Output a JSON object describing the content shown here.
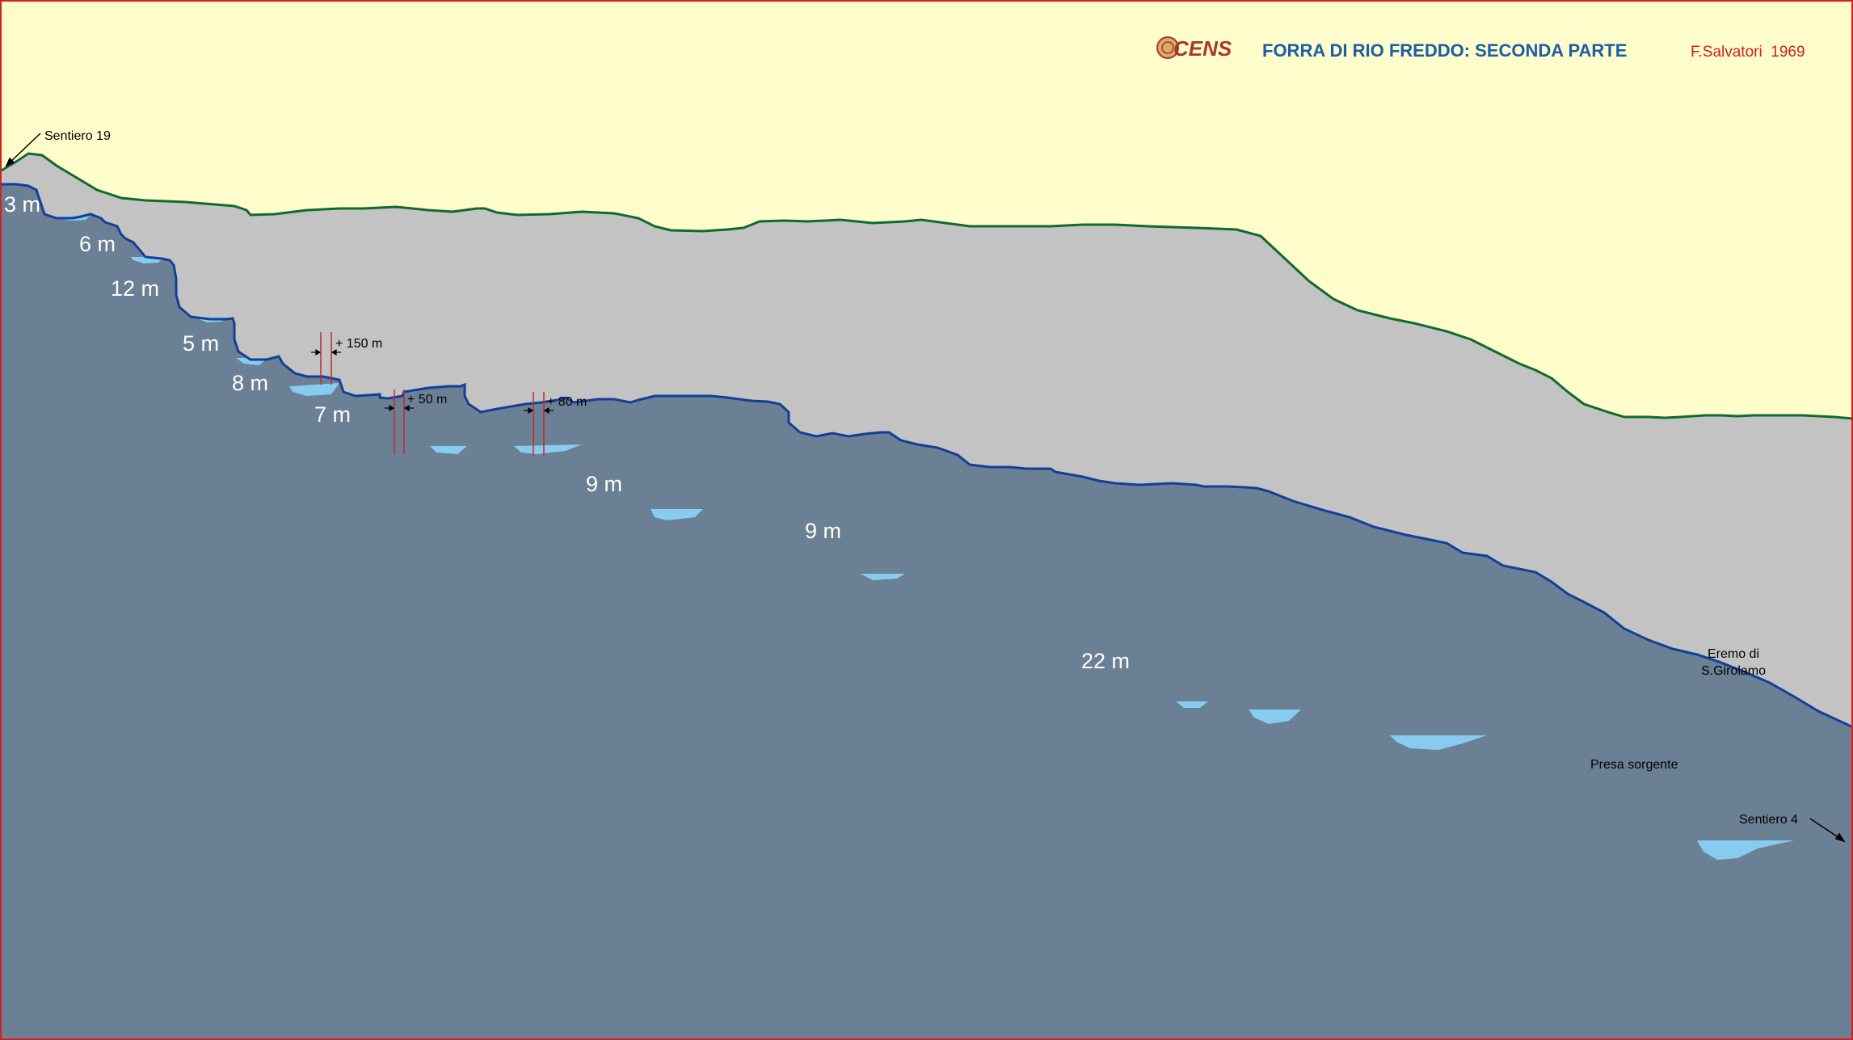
{
  "header": {
    "logo": "CENS",
    "title": "FORRA DI RIO FREDDO: SECONDA PARTE",
    "author": "F.Salvatori  1969"
  },
  "drops": {
    "d1": "3 m",
    "d2": "6 m",
    "d3": "12 m",
    "d4": "5 m",
    "d5": "8 m",
    "d6": "7 m",
    "d7": "9 m",
    "d8": "9 m",
    "d9": "22 m"
  },
  "gaps": {
    "g1": "+ 150 m",
    "g2": "+ 50 m",
    "g3": "+ 80 m"
  },
  "places": {
    "start": "Sentiero 19",
    "end": "Sentiero 4",
    "eremo_line1": "Eremo di",
    "eremo_line2": "S.Girolamo",
    "presa": "Presa sorgente"
  },
  "colors": {
    "sky": "#FFFDCB",
    "hillside": "#C3C3C3",
    "rock": "#6C8095",
    "water": "#87CCF0",
    "ridge_line": "#0E6B30",
    "bed_line": "#123F98",
    "title": "#1A5FA6",
    "author": "#CC2020",
    "logo": "#A8382A",
    "frame": "#D42020",
    "marker": "#C52828"
  }
}
